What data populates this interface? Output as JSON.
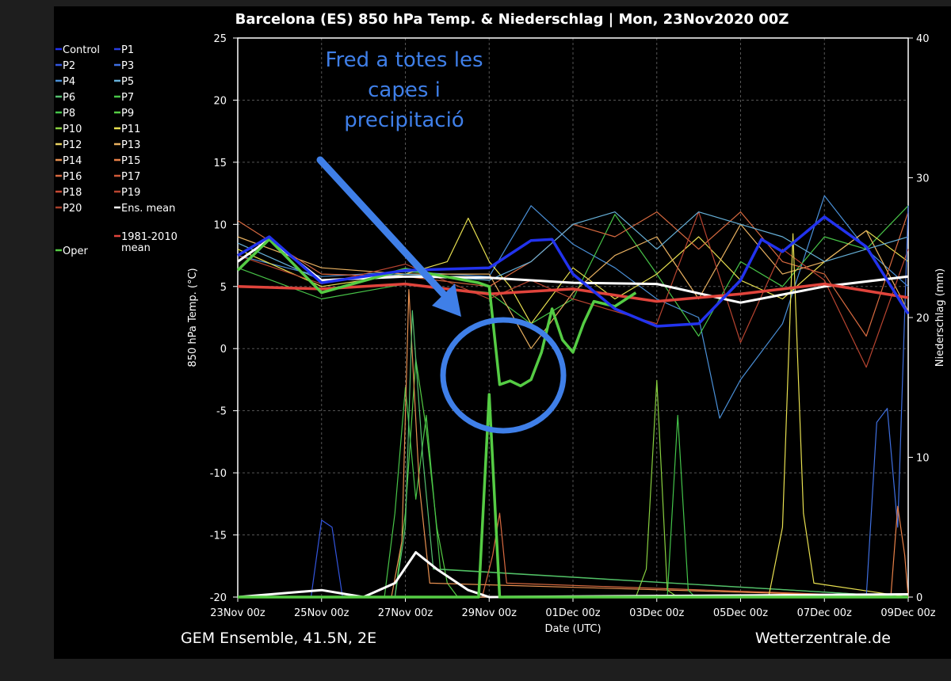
{
  "colors": {
    "page_bg": "#1e1e1e",
    "panel_bg": "#000000",
    "grid": "#555555",
    "text": "#ffffff",
    "annotation": "#3f7fe8",
    "oper": "#55cc44",
    "ens_mean": "#ffffff",
    "climate_mean": "#e0443c"
  },
  "chart_data": {
    "type": "line",
    "title": "Barcelona  (ES)  850 hPa Temp. & Niederschlag | Mon, 23Nov2020 00Z",
    "xlabel": "Date (UTC)",
    "ylabel": "850 hPa Temp. (°C)",
    "y2label": "Niederschlag (mm)",
    "footer_left": "GEM Ensemble, 41.5N, 2E",
    "footer_right": "Wetterzentrale.de",
    "x_unit": "hours from 23Nov 00z (6-hourly steps)",
    "xlim": [
      0,
      384
    ],
    "ylim": [
      -20,
      25
    ],
    "y2lim": [
      0,
      40
    ],
    "x_ticks": [
      {
        "x": 0,
        "label": "23Nov 00z"
      },
      {
        "x": 48,
        "label": "25Nov 00z"
      },
      {
        "x": 96,
        "label": "27Nov 00z"
      },
      {
        "x": 144,
        "label": "29Nov 00z"
      },
      {
        "x": 192,
        "label": "01Dec 00z"
      },
      {
        "x": 240,
        "label": "03Dec 00z"
      },
      {
        "x": 288,
        "label": "05Dec 00z"
      },
      {
        "x": 336,
        "label": "07Dec 00z"
      },
      {
        "x": 384,
        "label": "09Dec 00z"
      }
    ],
    "y_ticks": [
      "25",
      "20",
      "15",
      "10",
      "5",
      "0",
      "-5",
      "-10",
      "-15",
      "-20"
    ],
    "y2_ticks": [
      "40",
      "30",
      "20",
      "10",
      "0"
    ],
    "grid": true,
    "legend_position": "left outside",
    "legend": [
      {
        "name": "Control",
        "color": "#2233ee"
      },
      {
        "name": "P1",
        "color": "#2a3fe0"
      },
      {
        "name": "P2",
        "color": "#3355dd"
      },
      {
        "name": "P3",
        "color": "#3f6fe0"
      },
      {
        "name": "P4",
        "color": "#4a90d8"
      },
      {
        "name": "P5",
        "color": "#66b0d8"
      },
      {
        "name": "P6",
        "color": "#55c070"
      },
      {
        "name": "P7",
        "color": "#48c448"
      },
      {
        "name": "P8",
        "color": "#44c44a"
      },
      {
        "name": "P9",
        "color": "#55cc44"
      },
      {
        "name": "P10",
        "color": "#88d040"
      },
      {
        "name": "P11",
        "color": "#e8e050"
      },
      {
        "name": "P12",
        "color": "#e8d060"
      },
      {
        "name": "P13",
        "color": "#e8b060"
      },
      {
        "name": "P14",
        "color": "#e89050"
      },
      {
        "name": "P15",
        "color": "#e88048"
      },
      {
        "name": "P16",
        "color": "#d86a40"
      },
      {
        "name": "P17",
        "color": "#d05a38"
      },
      {
        "name": "P18",
        "color": "#c84a34"
      },
      {
        "name": "P19",
        "color": "#b84430"
      },
      {
        "name": "P20",
        "color": "#a8402c"
      },
      {
        "name": "Ens. mean",
        "color": "#ffffff"
      },
      {
        "name": "1981-2010 mean",
        "color": "#e0443c"
      },
      {
        "name": "Oper",
        "color": "#55cc44"
      }
    ],
    "annotation": {
      "text": [
        "Fred a totes les",
        "capes i",
        "precipitació"
      ]
    },
    "series": [
      {
        "name": "1981-2010 mean",
        "axis": "temp",
        "color": "#e0443c",
        "width": 3.5,
        "x": [
          0,
          48,
          96,
          144,
          192,
          240,
          288,
          336,
          384
        ],
        "y": [
          5.0,
          4.8,
          5.2,
          4.4,
          4.8,
          3.8,
          4.4,
          5.2,
          4.1
        ]
      },
      {
        "name": "Ens. mean",
        "axis": "temp",
        "color": "#ffffff",
        "width": 3,
        "x": [
          0,
          18,
          48,
          96,
          144,
          192,
          240,
          288,
          336,
          384
        ],
        "y": [
          7.0,
          8.8,
          5.5,
          5.8,
          5.7,
          5.3,
          5.2,
          3.7,
          5.0,
          5.8
        ]
      },
      {
        "name": "Oper",
        "axis": "temp",
        "color": "#55cc44",
        "width": 3.5,
        "x": [
          0,
          18,
          48,
          96,
          138,
          144,
          150,
          156,
          162,
          168,
          174,
          180,
          186,
          192,
          198,
          204,
          216,
          228
        ],
        "y": [
          6.3,
          8.8,
          4.5,
          6.4,
          5.3,
          5.0,
          -2.9,
          -2.6,
          -3.0,
          -2.5,
          -0.3,
          3.2,
          0.7,
          -0.3,
          2.0,
          3.8,
          3.4,
          4.5
        ]
      },
      {
        "name": "Control",
        "axis": "temp",
        "color": "#2233ee",
        "width": 3.5,
        "x": [
          0,
          18,
          48,
          96,
          144,
          168,
          180,
          192,
          216,
          240,
          264,
          288,
          300,
          312,
          336,
          360,
          384
        ],
        "y": [
          7.5,
          9.0,
          5.3,
          6.3,
          6.5,
          8.7,
          8.8,
          6.0,
          3.2,
          1.8,
          2.0,
          5.5,
          8.8,
          7.8,
          10.6,
          8.2,
          2.8
        ]
      },
      {
        "name": "P4",
        "axis": "temp",
        "color": "#4a90d8",
        "width": 1.2,
        "x": [
          0,
          48,
          96,
          144,
          168,
          192,
          216,
          240,
          264,
          276,
          288,
          312,
          336,
          360,
          384
        ],
        "y": [
          7.5,
          5.8,
          6.2,
          5.8,
          11.5,
          8.4,
          6.5,
          4.0,
          2.5,
          -5.6,
          -2.5,
          2.0,
          12.3,
          8.0,
          5.0
        ]
      },
      {
        "name": "P7",
        "axis": "temp",
        "color": "#48c448",
        "width": 1.2,
        "x": [
          0,
          48,
          96,
          144,
          168,
          192,
          216,
          240,
          264,
          288,
          312,
          336,
          360,
          384
        ],
        "y": [
          6.5,
          4.0,
          5.2,
          4.5,
          2.0,
          4.0,
          10.8,
          6.0,
          1.0,
          7.0,
          5.0,
          9.0,
          8.0,
          11.5
        ]
      },
      {
        "name": "P11",
        "axis": "temp",
        "color": "#e8e050",
        "width": 1.2,
        "x": [
          0,
          48,
          96,
          120,
          132,
          144,
          156,
          168,
          192,
          216,
          240,
          264,
          288,
          312,
          336,
          360,
          384
        ],
        "y": [
          8.0,
          5.0,
          6.0,
          7.0,
          10.5,
          7.0,
          5.0,
          2.0,
          6.5,
          4.0,
          6.0,
          9.0,
          5.5,
          4.0,
          7.0,
          9.5,
          7.0
        ]
      },
      {
        "name": "P13",
        "axis": "temp",
        "color": "#e8b060",
        "width": 1.2,
        "x": [
          0,
          48,
          96,
          144,
          168,
          192,
          216,
          240,
          264,
          288,
          312,
          336,
          360,
          384
        ],
        "y": [
          9.0,
          6.5,
          6.0,
          6.0,
          0.0,
          4.5,
          7.5,
          9.0,
          4.0,
          10.0,
          6.0,
          7.0,
          9.5,
          3.0
        ]
      },
      {
        "name": "P16",
        "axis": "temp",
        "color": "#d86a40",
        "width": 1.2,
        "x": [
          0,
          48,
          96,
          144,
          168,
          192,
          216,
          240,
          264,
          288,
          312,
          336,
          360,
          384
        ],
        "y": [
          10.3,
          6.0,
          5.8,
          5.0,
          7.0,
          10.0,
          9.0,
          11.0,
          8.0,
          11.0,
          7.0,
          6.0,
          1.0,
          11.0
        ]
      },
      {
        "name": "P19",
        "axis": "temp",
        "color": "#b84430",
        "width": 1.2,
        "x": [
          0,
          48,
          96,
          144,
          168,
          192,
          216,
          240,
          264,
          288,
          312,
          336,
          360,
          384
        ],
        "y": [
          7.5,
          5.2,
          6.8,
          4.0,
          5.5,
          4.0,
          3.0,
          2.0,
          11.0,
          0.5,
          8.0,
          5.5,
          -1.5,
          8.0
        ]
      },
      {
        "name": "P5",
        "axis": "temp",
        "color": "#66b0d8",
        "width": 1.2,
        "x": [
          0,
          48,
          96,
          144,
          168,
          192,
          216,
          240,
          264,
          288,
          312,
          336,
          360,
          384
        ],
        "y": [
          8.5,
          5.5,
          6.0,
          5.5,
          7.0,
          10.0,
          11.0,
          8.0,
          11.0,
          10.0,
          9.0,
          7.0,
          8.0,
          9.0
        ]
      },
      {
        "name": "Oper precipitation",
        "axis": "precip",
        "color": "#55cc44",
        "width": 3.5,
        "x": [
          0,
          132,
          138,
          144,
          150,
          156,
          384
        ],
        "y": [
          0,
          0,
          0,
          14.5,
          0,
          0,
          0
        ]
      },
      {
        "name": "P9 precipitation",
        "axis": "precip",
        "color": "#55cc44",
        "width": 1.2,
        "x": [
          0,
          90,
          96,
          102,
          108,
          114,
          120,
          126,
          384
        ],
        "y": [
          0,
          0,
          6.0,
          17.0,
          12.0,
          5.0,
          1.0,
          0,
          0
        ]
      },
      {
        "name": "P7 precipitation",
        "axis": "precip",
        "color": "#48c448",
        "width": 1.2,
        "x": [
          0,
          84,
          90,
          96,
          102,
          108,
          116,
          384
        ],
        "y": [
          0,
          0,
          6.0,
          15.0,
          7.0,
          13.0,
          2.0,
          0
        ]
      },
      {
        "name": "P14 precipitation",
        "axis": "precip",
        "color": "#e89050",
        "width": 1.2,
        "x": [
          0,
          88,
          94,
          98,
          104,
          110,
          384
        ],
        "y": [
          0,
          0,
          4.0,
          22.0,
          8.0,
          1.0,
          0
        ]
      },
      {
        "name": "P6 precipitation",
        "axis": "precip",
        "color": "#55c070",
        "width": 1.2,
        "x": [
          0,
          90,
          96,
          100,
          106,
          112,
          384
        ],
        "y": [
          0,
          0,
          5.0,
          20.5,
          10.0,
          2.0,
          0
        ]
      },
      {
        "name": "P16 precipitation",
        "axis": "precip",
        "color": "#d86a40",
        "width": 1.2,
        "x": [
          0,
          140,
          146,
          150,
          154,
          384
        ],
        "y": [
          0,
          0,
          3.0,
          6.0,
          1.0,
          0
        ]
      },
      {
        "name": "P10 precipitation",
        "axis": "precip",
        "color": "#88d040",
        "width": 1.2,
        "x": [
          0,
          228,
          234,
          240,
          246,
          252,
          384
        ],
        "y": [
          0,
          0,
          2.0,
          15.5,
          0.5,
          0,
          0
        ]
      },
      {
        "name": "P8 precipitation",
        "axis": "precip",
        "color": "#44c44a",
        "width": 1.2,
        "x": [
          0,
          246,
          252,
          258,
          262,
          384
        ],
        "y": [
          0,
          0,
          13.0,
          0.5,
          0,
          0
        ]
      },
      {
        "name": "P11 precipitation",
        "axis": "precip",
        "color": "#e8e050",
        "width": 1.2,
        "x": [
          0,
          304,
          312,
          318,
          324,
          330,
          384
        ],
        "y": [
          0,
          0,
          5.0,
          26.0,
          6.0,
          1.0,
          0
        ]
      },
      {
        "name": "P3 precipitation",
        "axis": "precip",
        "color": "#3f6fe0",
        "width": 1.2,
        "x": [
          0,
          360,
          366,
          372,
          378,
          384
        ],
        "y": [
          0,
          0,
          12.5,
          13.5,
          5.0,
          28.0
        ]
      },
      {
        "name": "P2 precipitation",
        "axis": "precip",
        "color": "#3355dd",
        "width": 1.2,
        "x": [
          0,
          42,
          48,
          54,
          60,
          384
        ],
        "y": [
          0,
          0,
          5.5,
          5.0,
          0,
          0
        ]
      },
      {
        "name": "P15 precipitation",
        "axis": "precip",
        "color": "#e88048",
        "width": 1.2,
        "x": [
          0,
          374,
          378,
          382,
          384
        ],
        "y": [
          0,
          0,
          6.5,
          3.0,
          0
        ]
      },
      {
        "name": "Ens. mean precipitation",
        "axis": "precip",
        "color": "#ffffff",
        "width": 3,
        "x": [
          0,
          48,
          72,
          90,
          102,
          114,
          132,
          144,
          384
        ],
        "y": [
          0,
          0.5,
          0,
          1.0,
          3.2,
          2.0,
          0.5,
          0,
          0.2
        ]
      }
    ]
  }
}
